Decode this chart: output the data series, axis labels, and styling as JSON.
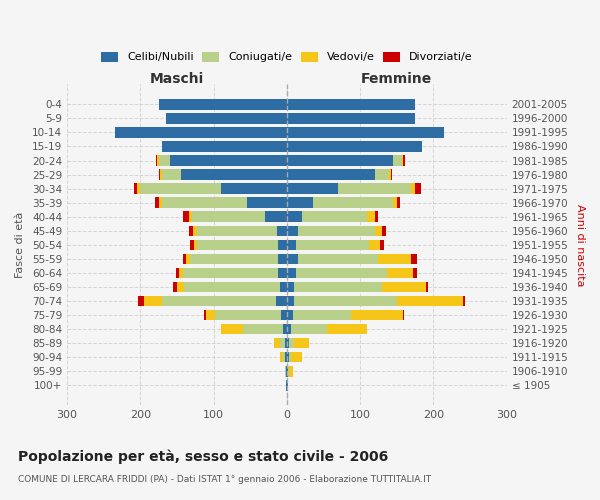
{
  "age_groups": [
    "100+",
    "95-99",
    "90-94",
    "85-89",
    "80-84",
    "75-79",
    "70-74",
    "65-69",
    "60-64",
    "55-59",
    "50-54",
    "45-49",
    "40-44",
    "35-39",
    "30-34",
    "25-29",
    "20-24",
    "15-19",
    "10-14",
    "5-9",
    "0-4"
  ],
  "birth_years": [
    "≤ 1905",
    "1906-1910",
    "1911-1915",
    "1916-1920",
    "1921-1925",
    "1926-1930",
    "1931-1935",
    "1936-1940",
    "1941-1945",
    "1946-1950",
    "1951-1955",
    "1956-1960",
    "1961-1965",
    "1966-1970",
    "1971-1975",
    "1976-1980",
    "1981-1985",
    "1986-1990",
    "1991-1995",
    "1996-2000",
    "2001-2005"
  ],
  "maschi": {
    "celibi": [
      1,
      1,
      2,
      2,
      5,
      8,
      15,
      10,
      12,
      12,
      12,
      13,
      30,
      55,
      90,
      145,
      160,
      170,
      235,
      165,
      175
    ],
    "coniugati": [
      0,
      1,
      3,
      7,
      55,
      90,
      155,
      130,
      130,
      120,
      110,
      110,
      100,
      115,
      110,
      25,
      15,
      0,
      0,
      0,
      0
    ],
    "vedovi": [
      0,
      1,
      5,
      8,
      30,
      12,
      25,
      10,
      5,
      5,
      5,
      5,
      4,
      4,
      4,
      3,
      2,
      0,
      0,
      0,
      0
    ],
    "divorziati": [
      0,
      0,
      0,
      0,
      0,
      3,
      8,
      5,
      5,
      5,
      5,
      5,
      8,
      6,
      5,
      2,
      2,
      0,
      0,
      0,
      0
    ]
  },
  "femmine": {
    "nubili": [
      1,
      2,
      3,
      3,
      5,
      8,
      10,
      10,
      12,
      15,
      12,
      15,
      20,
      35,
      70,
      120,
      145,
      185,
      215,
      175,
      175
    ],
    "coniugate": [
      0,
      1,
      3,
      7,
      50,
      80,
      140,
      120,
      125,
      110,
      100,
      105,
      90,
      110,
      100,
      20,
      12,
      0,
      0,
      0,
      0
    ],
    "vedove": [
      1,
      5,
      15,
      20,
      55,
      70,
      90,
      60,
      35,
      45,
      15,
      10,
      10,
      5,
      5,
      2,
      2,
      0,
      0,
      0,
      0
    ],
    "divorziate": [
      0,
      0,
      0,
      0,
      0,
      2,
      3,
      3,
      5,
      8,
      5,
      5,
      5,
      5,
      8,
      2,
      2,
      0,
      0,
      0,
      0
    ]
  },
  "colors": {
    "celibi": "#2e6da4",
    "coniugati": "#b8d08a",
    "vedovi": "#f5c518",
    "divorziati": "#cc0000"
  },
  "xlim": 300,
  "title": "Popolazione per età, sesso e stato civile - 2006",
  "subtitle": "COMUNE DI LERCARA FRIDDI (PA) - Dati ISTAT 1° gennaio 2006 - Elaborazione TUTTITALIA.IT",
  "ylabel_left": "Fasce di età",
  "ylabel_right": "Anni di nascita"
}
